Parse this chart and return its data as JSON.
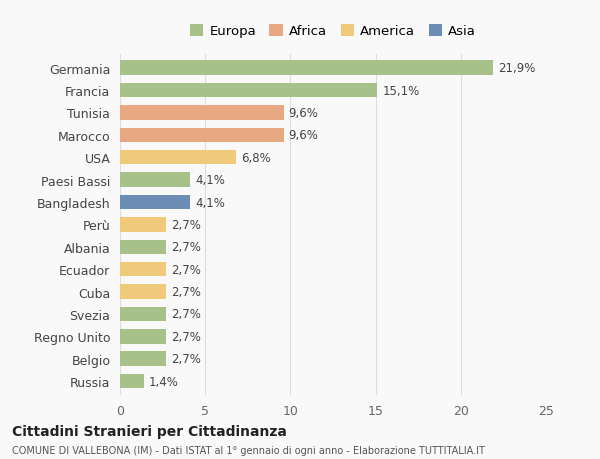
{
  "countries": [
    "Germania",
    "Francia",
    "Tunisia",
    "Marocco",
    "USA",
    "Paesi Bassi",
    "Bangladesh",
    "Perù",
    "Albania",
    "Ecuador",
    "Cuba",
    "Svezia",
    "Regno Unito",
    "Belgio",
    "Russia"
  ],
  "values": [
    21.9,
    15.1,
    9.6,
    9.6,
    6.8,
    4.1,
    4.1,
    2.7,
    2.7,
    2.7,
    2.7,
    2.7,
    2.7,
    2.7,
    1.4
  ],
  "labels": [
    "21,9%",
    "15,1%",
    "9,6%",
    "9,6%",
    "6,8%",
    "4,1%",
    "4,1%",
    "2,7%",
    "2,7%",
    "2,7%",
    "2,7%",
    "2,7%",
    "2,7%",
    "2,7%",
    "1,4%"
  ],
  "colors": [
    "#a8c18a",
    "#a8c18a",
    "#e8a882",
    "#e8a882",
    "#f0c97a",
    "#a8c18a",
    "#6b8db5",
    "#f0c97a",
    "#a8c18a",
    "#f0c97a",
    "#f0c97a",
    "#a8c18a",
    "#a8c18a",
    "#a8c18a",
    "#a8c18a"
  ],
  "legend": {
    "Europa": "#a8c18a",
    "Africa": "#e8a882",
    "America": "#f0c97a",
    "Asia": "#6b8db5"
  },
  "xlim": [
    0,
    25
  ],
  "xticks": [
    0,
    5,
    10,
    15,
    20,
    25
  ],
  "title": "Cittadini Stranieri per Cittadinanza",
  "subtitle": "COMUNE DI VALLEBONA (IM) - Dati ISTAT al 1° gennaio di ogni anno - Elaborazione TUTTITALIA.IT",
  "bg_color": "#f9f9f9",
  "grid_color": "#dddddd",
  "bar_height": 0.65
}
